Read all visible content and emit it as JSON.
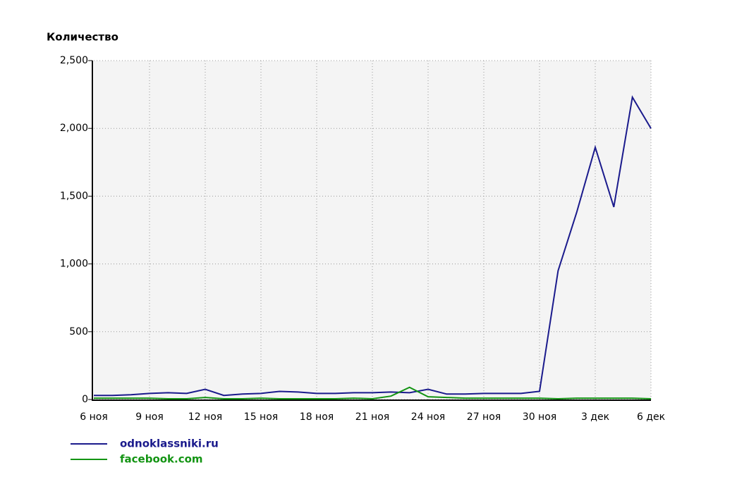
{
  "chart_data": {
    "type": "line",
    "title": "Количество",
    "categories": [
      "6 ноя",
      null,
      null,
      "9 ноя",
      null,
      null,
      "12 ноя",
      null,
      null,
      "15 ноя",
      null,
      null,
      "18 ноя",
      null,
      null,
      "21 ноя",
      null,
      null,
      "24 ноя",
      null,
      null,
      "27 ноя",
      null,
      null,
      "30 ноя",
      null,
      null,
      "3 дек",
      null,
      null,
      "6 дек"
    ],
    "series": [
      {
        "name": "odnoklassniki.ru",
        "color": "#1a1a8c",
        "values": [
          30,
          30,
          35,
          45,
          50,
          45,
          75,
          30,
          40,
          45,
          60,
          55,
          45,
          45,
          50,
          50,
          55,
          50,
          75,
          40,
          40,
          45,
          45,
          45,
          60,
          950,
          1380,
          1860,
          1420,
          2230,
          2000
        ]
      },
      {
        "name": "facebook.com",
        "color": "#139413",
        "values": [
          10,
          10,
          10,
          10,
          5,
          5,
          15,
          5,
          5,
          10,
          5,
          5,
          5,
          5,
          10,
          5,
          25,
          90,
          20,
          15,
          10,
          10,
          10,
          10,
          10,
          5,
          10,
          10,
          10,
          10,
          5
        ]
      }
    ],
    "ylim": [
      0,
      2500
    ],
    "yticks": [
      0,
      500,
      {
        "value": 1000,
        "label": "1,000"
      },
      {
        "value": 1500,
        "label": "1,500"
      },
      {
        "value": 2000,
        "label": "2,000"
      },
      {
        "value": 2500,
        "label": "2,500"
      }
    ],
    "grid": true
  }
}
